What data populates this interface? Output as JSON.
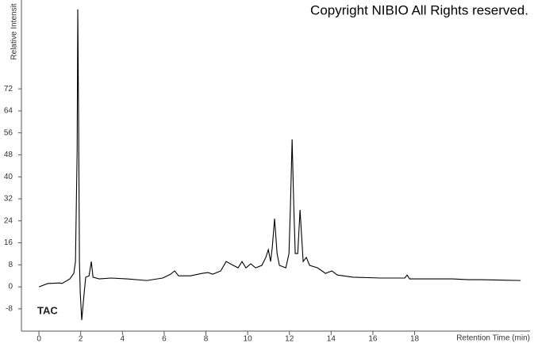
{
  "chart_data": {
    "type": "line",
    "title": "Copyright NIBIO All Rights reserved.",
    "y_label": "Relative Intensit",
    "x_label": "Retention Time (min)",
    "annotation": "TAC",
    "xlim": [
      -0.84,
      23.53
    ],
    "ylim": [
      -16.1,
      104.3
    ],
    "xticks": [
      0,
      2,
      4,
      6,
      8,
      10,
      12,
      14,
      16,
      18
    ],
    "yticks": [
      -8,
      0,
      8,
      16,
      24,
      32,
      40,
      48,
      56,
      64,
      72
    ],
    "series": [
      {
        "color": "#000000",
        "x": [
          0,
          0.42,
          0.99,
          1.1,
          1.48,
          1.67,
          1.75,
          1.83,
          1.86,
          1.9,
          1.94,
          1.98,
          2.05,
          2.13,
          2.24,
          2.4,
          2.51,
          2.59,
          2.89,
          3.46,
          4.22,
          5.17,
          5.93,
          6.31,
          6.5,
          6.69,
          7.26,
          7.83,
          8.1,
          8.33,
          8.71,
          8.97,
          9.24,
          9.54,
          9.73,
          9.92,
          10.15,
          10.38,
          10.68,
          10.87,
          10.99,
          11.1,
          11.18,
          11.29,
          11.41,
          11.52,
          11.83,
          11.98,
          12.05,
          12.13,
          12.21,
          12.28,
          12.4,
          12.51,
          12.59,
          12.66,
          12.81,
          12.97,
          13.35,
          13.73,
          14.03,
          14.3,
          15.06,
          16.39,
          17.53,
          17.64,
          17.76,
          19.81,
          20.57,
          21.18,
          23.08
        ],
        "values": [
          0,
          1.2,
          1.4,
          1.2,
          2.9,
          4.9,
          9.2,
          49.6,
          100.9,
          61,
          9.2,
          -2.3,
          -12.1,
          -5.2,
          3.5,
          4,
          9.2,
          3.5,
          2.9,
          3.2,
          2.9,
          2.3,
          3.2,
          4.6,
          5.8,
          4,
          4,
          4.9,
          5.2,
          4.6,
          5.8,
          9.2,
          8.1,
          6.9,
          9.2,
          6.9,
          8.4,
          6.9,
          7.8,
          10.7,
          13.5,
          9.2,
          14.4,
          24.8,
          12.1,
          7.8,
          6.9,
          12.1,
          29.4,
          53.6,
          29.4,
          12.1,
          12.1,
          28,
          17.9,
          9.2,
          10.7,
          7.8,
          6.9,
          4.9,
          5.8,
          4.3,
          3.5,
          3.2,
          3.2,
          4.3,
          2.9,
          2.9,
          2.6,
          2.6,
          2.3
        ]
      }
    ]
  }
}
